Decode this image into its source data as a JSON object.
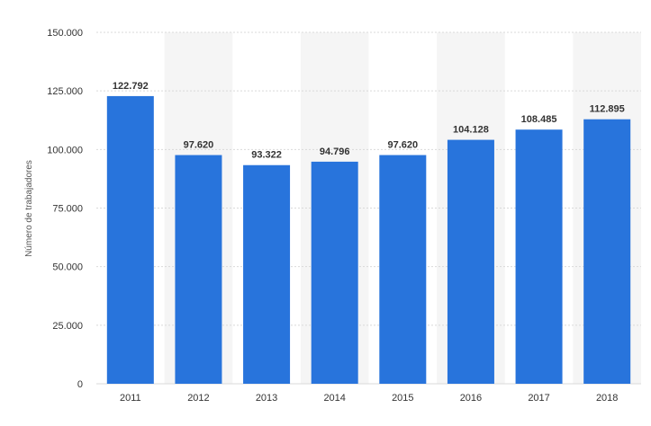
{
  "chart_data": {
    "type": "bar",
    "title": "",
    "xlabel": "",
    "ylabel": "Número de trabajadores",
    "categories": [
      "2011",
      "2012",
      "2013",
      "2014",
      "2015",
      "2016",
      "2017",
      "2018"
    ],
    "values": [
      122792,
      97620,
      93322,
      94796,
      97620,
      104128,
      108485,
      112895
    ],
    "value_labels": [
      "122.792",
      "97.620",
      "93.322",
      "94.796",
      "97.620",
      "104.128",
      "108.485",
      "112.895"
    ],
    "ylim": [
      0,
      150000
    ],
    "yticks": [
      0,
      25000,
      50000,
      75000,
      100000,
      125000,
      150000
    ],
    "ytick_labels": [
      "0",
      "25.000",
      "50.000",
      "75.000",
      "100.000",
      "125.000",
      "150.000"
    ],
    "bar_color": "#2874dc",
    "band_color": "#f5f5f5",
    "grid": true,
    "legend": "none"
  }
}
